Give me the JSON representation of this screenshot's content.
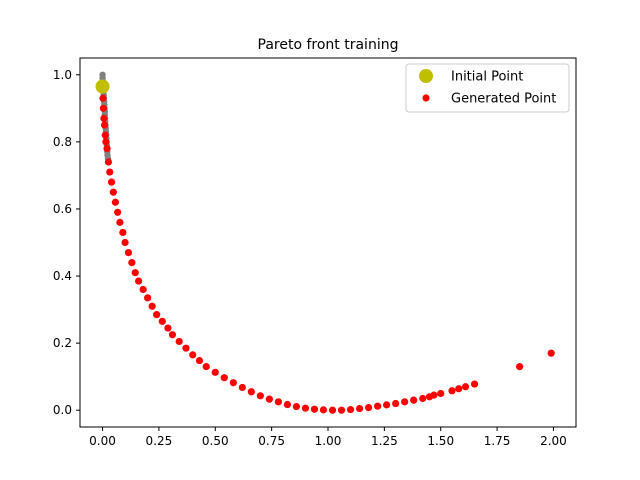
{
  "chart_data": {
    "type": "scatter",
    "title": "Pareto front training",
    "xlabel": "",
    "ylabel": "",
    "xlim": [
      -0.1,
      2.1
    ],
    "ylim": [
      -0.05,
      1.05
    ],
    "xticks": [
      0.0,
      0.25,
      0.5,
      0.75,
      1.0,
      1.25,
      1.5,
      1.75,
      2.0
    ],
    "xtick_labels": [
      "0.00",
      "0.25",
      "0.50",
      "0.75",
      "1.00",
      "1.25",
      "1.50",
      "1.75",
      "2.00"
    ],
    "yticks": [
      0.0,
      0.2,
      0.4,
      0.6,
      0.8,
      1.0
    ],
    "ytick_labels": [
      "0.0",
      "0.2",
      "0.4",
      "0.6",
      "0.8",
      "1.0"
    ],
    "grid": false,
    "legend_position": "upper right",
    "series": [
      {
        "name": "",
        "color": "#808080",
        "points": [
          [
            0.0,
            1.0
          ],
          [
            0.0,
            0.99
          ],
          [
            0.002,
            0.98
          ],
          [
            0.003,
            0.97
          ],
          [
            0.004,
            0.96
          ],
          [
            0.004,
            0.95
          ],
          [
            0.005,
            0.94
          ],
          [
            0.006,
            0.93
          ],
          [
            0.007,
            0.92
          ],
          [
            0.008,
            0.91
          ],
          [
            0.009,
            0.9
          ],
          [
            0.01,
            0.89
          ],
          [
            0.01,
            0.88
          ],
          [
            0.011,
            0.87
          ],
          [
            0.012,
            0.86
          ],
          [
            0.013,
            0.85
          ],
          [
            0.014,
            0.84
          ],
          [
            0.015,
            0.83
          ],
          [
            0.016,
            0.82
          ],
          [
            0.017,
            0.81
          ],
          [
            0.018,
            0.8
          ],
          [
            0.019,
            0.79
          ],
          [
            0.02,
            0.78
          ],
          [
            0.021,
            0.77
          ],
          [
            0.022,
            0.76
          ],
          [
            0.024,
            0.75
          ],
          [
            0.025,
            0.74
          ]
        ]
      },
      {
        "name": "Generated Point",
        "color": "#ff0000",
        "points": [
          [
            0.0,
            0.96
          ],
          [
            0.002,
            0.93
          ],
          [
            0.004,
            0.9
          ],
          [
            0.006,
            0.87
          ],
          [
            0.009,
            0.85
          ],
          [
            0.012,
            0.82
          ],
          [
            0.015,
            0.8
          ],
          [
            0.02,
            0.78
          ],
          [
            0.026,
            0.74
          ],
          [
            0.032,
            0.71
          ],
          [
            0.04,
            0.68
          ],
          [
            0.048,
            0.65
          ],
          [
            0.057,
            0.62
          ],
          [
            0.067,
            0.59
          ],
          [
            0.077,
            0.56
          ],
          [
            0.09,
            0.53
          ],
          [
            0.1,
            0.5
          ],
          [
            0.115,
            0.47
          ],
          [
            0.13,
            0.44
          ],
          [
            0.145,
            0.41
          ],
          [
            0.16,
            0.385
          ],
          [
            0.18,
            0.36
          ],
          [
            0.2,
            0.335
          ],
          [
            0.22,
            0.31
          ],
          [
            0.24,
            0.285
          ],
          [
            0.265,
            0.265
          ],
          [
            0.29,
            0.245
          ],
          [
            0.31,
            0.225
          ],
          [
            0.34,
            0.205
          ],
          [
            0.37,
            0.185
          ],
          [
            0.4,
            0.165
          ],
          [
            0.43,
            0.148
          ],
          [
            0.46,
            0.13
          ],
          [
            0.5,
            0.113
          ],
          [
            0.54,
            0.097
          ],
          [
            0.58,
            0.082
          ],
          [
            0.62,
            0.068
          ],
          [
            0.66,
            0.055
          ],
          [
            0.7,
            0.043
          ],
          [
            0.74,
            0.033
          ],
          [
            0.78,
            0.025
          ],
          [
            0.82,
            0.017
          ],
          [
            0.86,
            0.011
          ],
          [
            0.9,
            0.006
          ],
          [
            0.94,
            0.003
          ],
          [
            0.98,
            0.001
          ],
          [
            1.02,
            0.0
          ],
          [
            1.06,
            0.0
          ],
          [
            1.1,
            0.002
          ],
          [
            1.14,
            0.005
          ],
          [
            1.18,
            0.008
          ],
          [
            1.22,
            0.012
          ],
          [
            1.26,
            0.016
          ],
          [
            1.3,
            0.02
          ],
          [
            1.34,
            0.025
          ],
          [
            1.38,
            0.03
          ],
          [
            1.42,
            0.035
          ],
          [
            1.45,
            0.04
          ],
          [
            1.47,
            0.045
          ],
          [
            1.5,
            0.05
          ],
          [
            1.55,
            0.058
          ],
          [
            1.58,
            0.064
          ],
          [
            1.61,
            0.07
          ],
          [
            1.65,
            0.078
          ],
          [
            1.85,
            0.13
          ],
          [
            1.99,
            0.17
          ]
        ]
      },
      {
        "name": "Initial Point",
        "color": "#bfbf00",
        "points": [
          [
            0.0,
            0.965
          ]
        ]
      }
    ]
  }
}
